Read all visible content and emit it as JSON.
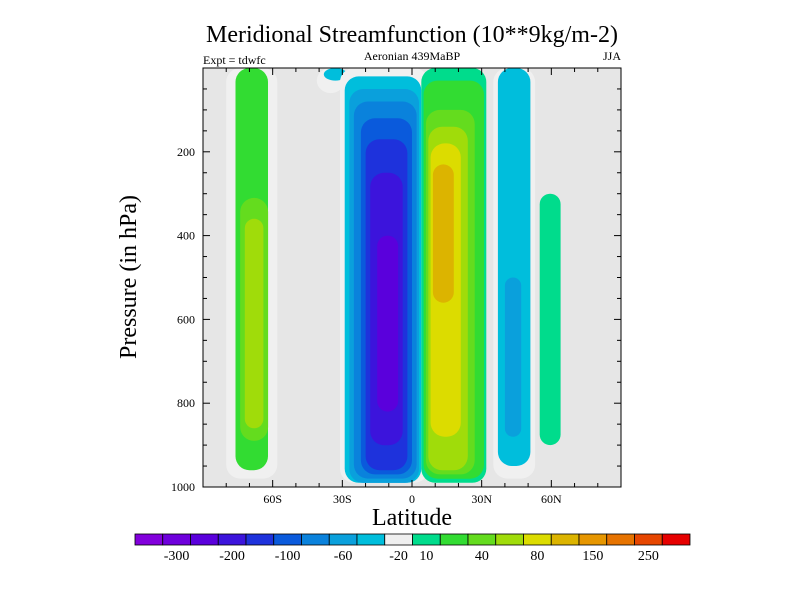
{
  "chart_data": {
    "type": "heatmap",
    "title": "Meridional Streamfunction (10**9kg/m-2)",
    "subtitle_left": "Expt = tdwfc",
    "subtitle_center": "Aeronian 439MaBP",
    "subtitle_right": "JJA",
    "xlabel": "Latitude",
    "ylabel": "Pressure (in hPa)",
    "xlim": [
      -90,
      90
    ],
    "ylim": [
      1000,
      0
    ],
    "x_ticks": [
      {
        "value": -60,
        "label": "60S"
      },
      {
        "value": -30,
        "label": "30S"
      },
      {
        "value": 0,
        "label": "0"
      },
      {
        "value": 30,
        "label": "30N"
      },
      {
        "value": 60,
        "label": "60N"
      }
    ],
    "y_ticks": [
      {
        "value": 200,
        "label": "200"
      },
      {
        "value": 400,
        "label": "400"
      },
      {
        "value": 600,
        "label": "600"
      },
      {
        "value": 800,
        "label": "800"
      },
      {
        "value": 1000,
        "label": "1000"
      }
    ],
    "background_color": "#e6e6e6",
    "colorbar": {
      "colors": [
        "#8200dc",
        "#6e00dc",
        "#5a00dc",
        "#3c14dc",
        "#1e32dc",
        "#0a5adc",
        "#0a82dc",
        "#0aa0dc",
        "#00bedc",
        "#f0f0f0",
        "#00dc8c",
        "#32dc32",
        "#64dc1e",
        "#a0dc0a",
        "#dcdc00",
        "#dcb400",
        "#e69600",
        "#e67300",
        "#e64600",
        "#e60000"
      ],
      "labels": [
        {
          "index": 1,
          "label": "-300"
        },
        {
          "index": 3,
          "label": "-200"
        },
        {
          "index": 5,
          "label": "-100"
        },
        {
          "index": 7,
          "label": "-60"
        },
        {
          "index": 9,
          "label": "-20"
        },
        {
          "index": 10,
          "label": "10"
        },
        {
          "index": 12,
          "label": "40"
        },
        {
          "index": 14,
          "label": "80"
        },
        {
          "index": 16,
          "label": "150"
        },
        {
          "index": 18,
          "label": "250"
        }
      ]
    },
    "cells": [
      {
        "lat": [
          -80,
          -58
        ],
        "p": [
          0,
          980
        ],
        "level": 9
      },
      {
        "lat": [
          -76,
          -62
        ],
        "p": [
          0,
          960
        ],
        "level": 11
      },
      {
        "lat": [
          -74,
          -62
        ],
        "p": [
          310,
          890
        ],
        "level": 12
      },
      {
        "lat": [
          -72,
          -64
        ],
        "p": [
          360,
          860
        ],
        "level": 13
      },
      {
        "lat": [
          -41,
          -29
        ],
        "p": [
          0,
          60
        ],
        "level": 9
      },
      {
        "lat": [
          -38,
          -28
        ],
        "p": [
          0,
          30
        ],
        "level": 8
      },
      {
        "lat": [
          -31,
          7
        ],
        "p": [
          0,
          990
        ],
        "level": 9
      },
      {
        "lat": [
          -29,
          4
        ],
        "p": [
          20,
          990
        ],
        "level": 8
      },
      {
        "lat": [
          -27,
          3
        ],
        "p": [
          50,
          990
        ],
        "level": 7
      },
      {
        "lat": [
          -25,
          2
        ],
        "p": [
          80,
          980
        ],
        "level": 6
      },
      {
        "lat": [
          -22,
          0
        ],
        "p": [
          120,
          970
        ],
        "level": 5
      },
      {
        "lat": [
          -20,
          -2
        ],
        "p": [
          170,
          960
        ],
        "level": 4
      },
      {
        "lat": [
          -18,
          -4
        ],
        "p": [
          250,
          900
        ],
        "level": 3
      },
      {
        "lat": [
          -15,
          -6
        ],
        "p": [
          400,
          820
        ],
        "level": 2
      },
      {
        "lat": [
          4,
          32
        ],
        "p": [
          0,
          990
        ],
        "level": 10
      },
      {
        "lat": [
          5,
          31
        ],
        "p": [
          30,
          980
        ],
        "level": 11
      },
      {
        "lat": [
          6,
          27
        ],
        "p": [
          100,
          970
        ],
        "level": 12
      },
      {
        "lat": [
          7,
          24
        ],
        "p": [
          140,
          960
        ],
        "level": 13
      },
      {
        "lat": [
          8,
          21
        ],
        "p": [
          180,
          880
        ],
        "level": 14
      },
      {
        "lat": [
          9,
          18
        ],
        "p": [
          230,
          560
        ],
        "level": 15
      },
      {
        "lat": [
          35,
          53
        ],
        "p": [
          0,
          980
        ],
        "level": 9
      },
      {
        "lat": [
          37,
          51
        ],
        "p": [
          0,
          950
        ],
        "level": 8
      },
      {
        "lat": [
          40,
          47
        ],
        "p": [
          500,
          880
        ],
        "level": 7
      },
      {
        "lat": [
          55,
          64
        ],
        "p": [
          300,
          900
        ],
        "level": 10
      }
    ]
  }
}
